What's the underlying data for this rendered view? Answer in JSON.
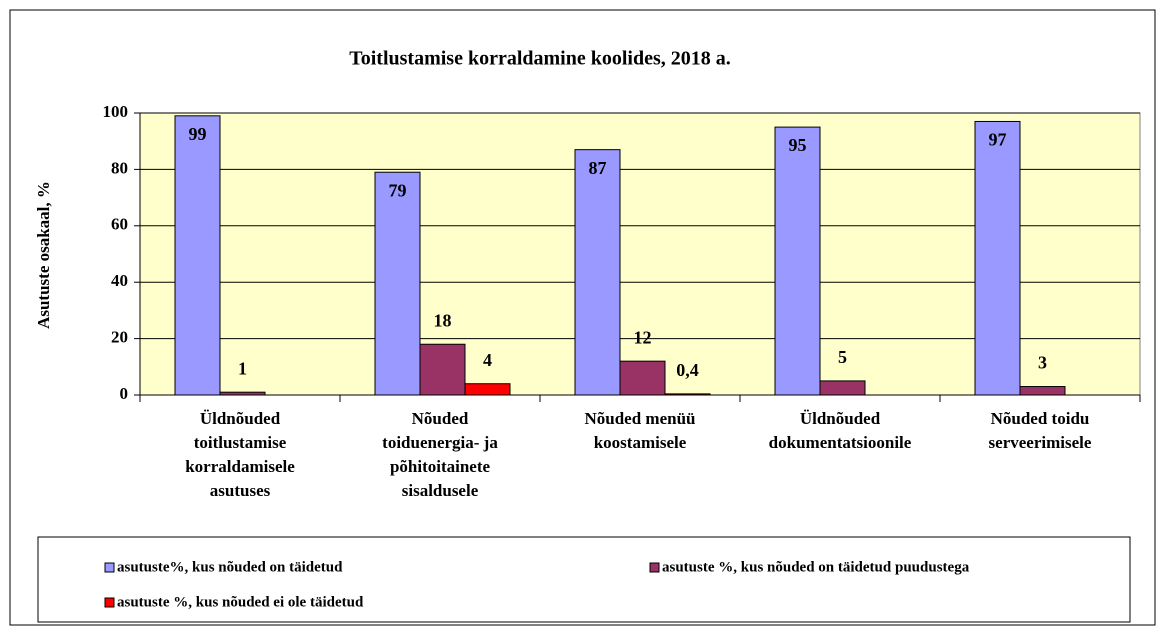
{
  "chart_data": {
    "type": "bar",
    "title": "Toitlustamise korraldamine koolides, 2018 a.",
    "ylabel": "Asutuste  osakaal, %",
    "categories": [
      [
        "Üldnõuded",
        "toitlustamise",
        "korraldamisele",
        "asutuses"
      ],
      [
        "Nõuded",
        "toiduenergia- ja",
        "põhitoitainete",
        "sisaldusele"
      ],
      [
        "Nõuded menüü",
        "koostamisele"
      ],
      [
        "Üldnõuded",
        "dokumentatsioonile"
      ],
      [
        "Nõuded toidu",
        "serveerimisele"
      ]
    ],
    "series": [
      {
        "name": "asutuste%, kus nõuded on  täidetud",
        "color": "#9999ff",
        "values": [
          99,
          79,
          87,
          95,
          97
        ]
      },
      {
        "name": "asutuste %, kus nõuded on  täidetud puudustega",
        "color": "#993366",
        "values": [
          1,
          18,
          12,
          5,
          3
        ]
      },
      {
        "name": "asutuste %, kus nõuded ei ole täidetud",
        "color": "#ff0000",
        "values": [
          null,
          4,
          0.4,
          null,
          null
        ],
        "value_labels": [
          null,
          "4",
          "0,4",
          null,
          null
        ]
      }
    ],
    "ylim": [
      0,
      100
    ],
    "yticks": [
      0,
      20,
      40,
      60,
      80,
      100
    ],
    "grid": true,
    "plot_background": "#ffffcc"
  }
}
